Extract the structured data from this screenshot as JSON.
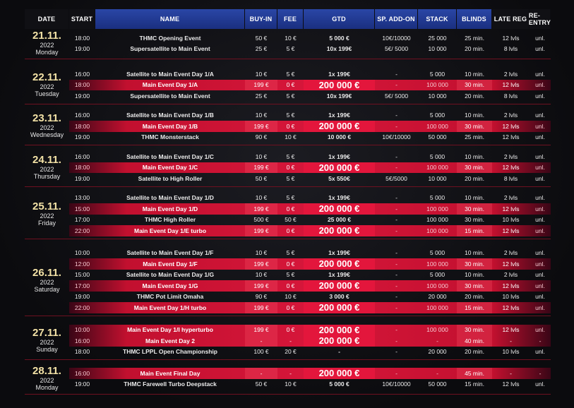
{
  "headers": {
    "date": "DATE",
    "start": "START",
    "name": "NAME",
    "buyin": "BUY-IN",
    "fee": "FEE",
    "gtd": "GTD",
    "sp": "SP. ADD-ON",
    "stack": "STACK",
    "blinds": "BLINDS",
    "late": "LATE REG",
    "re": "RE-ENTRY"
  },
  "days": [
    {
      "date": "21.11.",
      "year": "2022",
      "weekday": "Monday",
      "events": [
        {
          "start": "18:00",
          "name": "THMC Opening Event",
          "buyin": "50 €",
          "fee": "10 €",
          "gtd": "5 000 €",
          "sp": "10€/10000",
          "stack": "25 000",
          "blinds": "25 min.",
          "late": "12 lvls",
          "re": "unl.",
          "main": false
        },
        {
          "start": "19:00",
          "name": "Supersatellite to Main Event",
          "buyin": "25 €",
          "fee": "5 €",
          "gtd": "10x 199€",
          "sp": "5€/ 5000",
          "stack": "10 000",
          "blinds": "20 min.",
          "late": "8 lvls",
          "re": "unl.",
          "main": false
        }
      ]
    },
    {
      "date": "22.11.",
      "year": "2022",
      "weekday": "Tuesday",
      "events": [
        {
          "start": "16:00",
          "name": "Satellite to Main Event Day 1/A",
          "buyin": "10 €",
          "fee": "5 €",
          "gtd": "1x 199€",
          "sp": "-",
          "stack": "5 000",
          "blinds": "10 min.",
          "late": "2 lvls",
          "re": "unl.",
          "main": false
        },
        {
          "start": "18:00",
          "name": "Main Event Day 1/A",
          "buyin": "199 €",
          "fee": "0 €",
          "gtd": "200 000 €",
          "sp": "-",
          "stack": "100 000",
          "blinds": "30 min.",
          "late": "12 lvls",
          "re": "unl.",
          "main": true
        },
        {
          "start": "19:00",
          "name": "Supersatellite to Main Event",
          "buyin": "25 €",
          "fee": "5 €",
          "gtd": "10x 199€",
          "sp": "5€/ 5000",
          "stack": "10 000",
          "blinds": "20 min.",
          "late": "8 lvls",
          "re": "unl.",
          "main": false
        }
      ]
    },
    {
      "date": "23.11.",
      "year": "2022",
      "weekday": "Wednesday",
      "events": [
        {
          "start": "16:00",
          "name": "Satellite to Main Event Day 1/B",
          "buyin": "10 €",
          "fee": "5 €",
          "gtd": "1x 199€",
          "sp": "-",
          "stack": "5 000",
          "blinds": "10 min.",
          "late": "2 lvls",
          "re": "unl.",
          "main": false
        },
        {
          "start": "18:00",
          "name": "Main Event Day 1/B",
          "buyin": "199 €",
          "fee": "0 €",
          "gtd": "200 000 €",
          "sp": "-",
          "stack": "100 000",
          "blinds": "30 min.",
          "late": "12 lvls",
          "re": "unl.",
          "main": true
        },
        {
          "start": "19:00",
          "name": "THMC Monsterstack",
          "buyin": "90 €",
          "fee": "10 €",
          "gtd": "10 000 €",
          "sp": "10€/10000",
          "stack": "50 000",
          "blinds": "25 min.",
          "late": "12 lvls",
          "re": "unl.",
          "main": false
        }
      ]
    },
    {
      "date": "24.11.",
      "year": "2022",
      "weekday": "Thursday",
      "events": [
        {
          "start": "16:00",
          "name": "Satellite to Main Event Day 1/C",
          "buyin": "10 €",
          "fee": "5 €",
          "gtd": "1x 199€",
          "sp": "-",
          "stack": "5 000",
          "blinds": "10 min.",
          "late": "2 lvls",
          "re": "unl.",
          "main": false
        },
        {
          "start": "18:00",
          "name": "Main Event Day 1/C",
          "buyin": "199 €",
          "fee": "0 €",
          "gtd": "200 000 €",
          "sp": "-",
          "stack": "100 000",
          "blinds": "30 min.",
          "late": "12 lvls",
          "re": "unl.",
          "main": true
        },
        {
          "start": "19:00",
          "name": "Satellite to High Roller",
          "buyin": "50 €",
          "fee": "5 €",
          "gtd": "5x 550€",
          "sp": "5€/5000",
          "stack": "10 000",
          "blinds": "20 min.",
          "late": "8 lvls",
          "re": "unl.",
          "main": false
        }
      ]
    },
    {
      "date": "25.11.",
      "year": "2022",
      "weekday": "Friday",
      "events": [
        {
          "start": "13:00",
          "name": "Satellite to Main Event Day 1/D",
          "buyin": "10 €",
          "fee": "5 €",
          "gtd": "1x 199€",
          "sp": "-",
          "stack": "5 000",
          "blinds": "10 min.",
          "late": "2 lvls",
          "re": "unl.",
          "main": false
        },
        {
          "start": "15:00",
          "name": "Main Event Day 1/D",
          "buyin": "199 €",
          "fee": "0 €",
          "gtd": "200 000 €",
          "sp": "-",
          "stack": "100 000",
          "blinds": "30 min.",
          "late": "12 lvls",
          "re": "unl.",
          "main": true
        },
        {
          "start": "17:00",
          "name": "THMC High Roller",
          "buyin": "500 €",
          "fee": "50 €",
          "gtd": "25 000 €",
          "sp": "-",
          "stack": "100 000",
          "blinds": "30 min.",
          "late": "10 lvls",
          "re": "unl.",
          "main": false
        },
        {
          "start": "22:00",
          "name": "Main Event Day 1/E turbo",
          "buyin": "199 €",
          "fee": "0 €",
          "gtd": "200 000 €",
          "sp": "-",
          "stack": "100 000",
          "blinds": "15 min.",
          "late": "12 lvls",
          "re": "unl.",
          "main": true
        }
      ]
    },
    {
      "date": "26.11.",
      "year": "2022",
      "weekday": "Saturday",
      "events": [
        {
          "start": "10:00",
          "name": "Satellite to Main Event Day 1/F",
          "buyin": "10 €",
          "fee": "5 €",
          "gtd": "1x 199€",
          "sp": "-",
          "stack": "5 000",
          "blinds": "10 min.",
          "late": "2 lvls",
          "re": "unl.",
          "main": false
        },
        {
          "start": "12:00",
          "name": "Main Event Day 1/F",
          "buyin": "199 €",
          "fee": "0 €",
          "gtd": "200 000 €",
          "sp": "-",
          "stack": "100 000",
          "blinds": "30 min.",
          "late": "12 lvls",
          "re": "unl.",
          "main": true
        },
        {
          "start": "15:00",
          "name": "Satellite to Main Event Day 1/G",
          "buyin": "10 €",
          "fee": "5 €",
          "gtd": "1x 199€",
          "sp": "-",
          "stack": "5 000",
          "blinds": "10 min.",
          "late": "2 lvls",
          "re": "unl.",
          "main": false
        },
        {
          "start": "17:00",
          "name": "Main Event Day 1/G",
          "buyin": "199 €",
          "fee": "0 €",
          "gtd": "200 000 €",
          "sp": "-",
          "stack": "100 000",
          "blinds": "30 min.",
          "late": "12 lvls",
          "re": "unl.",
          "main": true
        },
        {
          "start": "19:00",
          "name": "THMC Pot Limit Omaha",
          "buyin": "90 €",
          "fee": "10 €",
          "gtd": "3 000 €",
          "sp": "-",
          "stack": "20 000",
          "blinds": "20 min.",
          "late": "10 lvls",
          "re": "unl.",
          "main": false
        },
        {
          "start": "22:00",
          "name": "Main Event Day 1/H turbo",
          "buyin": "199 €",
          "fee": "0 €",
          "gtd": "200 000 €",
          "sp": "-",
          "stack": "100 000",
          "blinds": "15 min.",
          "late": "12 lvls",
          "re": "unl.",
          "main": true
        }
      ]
    },
    {
      "date": "27.11.",
      "year": "2022",
      "weekday": "Sunday",
      "events": [
        {
          "start": "10:00",
          "name": "Main Event Day 1/I hyperturbo",
          "buyin": "199 €",
          "fee": "0 €",
          "gtd": "200 000 €",
          "sp": "-",
          "stack": "100 000",
          "blinds": "30 min.",
          "late": "12 lvls",
          "re": "unl.",
          "main": true
        },
        {
          "start": "16:00",
          "name": "Main Event Day 2",
          "buyin": "-",
          "fee": "-",
          "gtd": "200 000 €",
          "sp": "-",
          "stack": "-",
          "blinds": "40 min.",
          "late": "-",
          "re": "-",
          "main": true
        },
        {
          "start": "18:00",
          "name": "THMC LPPL Open Championship",
          "buyin": "100 €",
          "fee": "20 €",
          "gtd": "-",
          "sp": "-",
          "stack": "20 000",
          "blinds": "20 min.",
          "late": "10 lvls",
          "re": "unl.",
          "main": false
        }
      ]
    },
    {
      "date": "28.11.",
      "year": "2022",
      "weekday": "Monday",
      "events": [
        {
          "start": "16:00",
          "name": "Main Event Final Day",
          "buyin": "-",
          "fee": "-",
          "gtd": "200 000 €",
          "sp": "-",
          "stack": "-",
          "blinds": "45 min.",
          "late": "-",
          "re": "-",
          "main": true
        },
        {
          "start": "19:00",
          "name": "THMC Farewell Turbo Deepstack",
          "buyin": "50 €",
          "fee": "10 €",
          "gtd": "5 000 €",
          "sp": "10€/10000",
          "stack": "50 000",
          "blinds": "15 min.",
          "late": "12 lvls",
          "re": "unl.",
          "main": false
        }
      ]
    }
  ]
}
